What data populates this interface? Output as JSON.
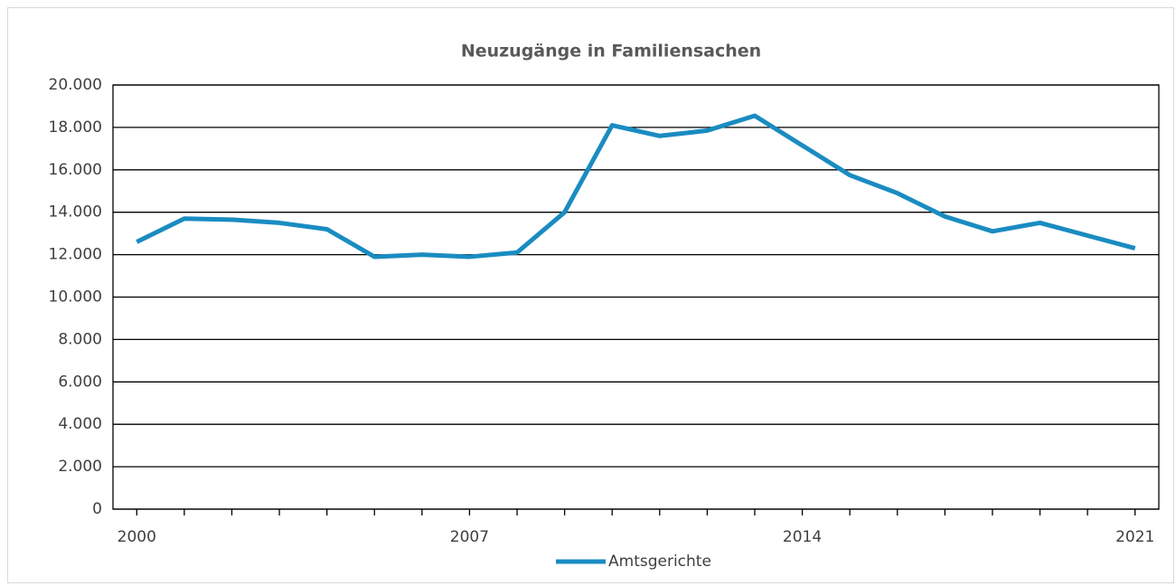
{
  "chart_data": {
    "type": "line",
    "title": "Neuzugänge in Familiensachen",
    "categories": [
      "2000",
      null,
      null,
      null,
      null,
      null,
      null,
      "2007",
      null,
      null,
      null,
      null,
      null,
      null,
      "2014",
      null,
      null,
      null,
      null,
      null,
      null,
      "2021"
    ],
    "series": [
      {
        "name": "Amtsgerichte",
        "color": "#1a8cc1",
        "values": [
          12600,
          13700,
          13650,
          13500,
          13200,
          11900,
          12000,
          11900,
          12100,
          14000,
          18100,
          17600,
          17850,
          18550,
          17150,
          15750,
          14900,
          13800,
          13100,
          13500,
          12900,
          12300
        ]
      }
    ],
    "ylim": [
      0,
      20000
    ],
    "yticks": [
      0,
      {
        "value": 2000,
        "label": "2.000"
      },
      {
        "value": 4000,
        "label": "4.000"
      },
      {
        "value": 6000,
        "label": "6.000"
      },
      {
        "value": 8000,
        "label": "8.000"
      },
      {
        "value": 10000,
        "label": "10.000"
      },
      {
        "value": 12000,
        "label": "12.000"
      },
      {
        "value": 14000,
        "label": "14.000"
      },
      {
        "value": 16000,
        "label": "16.000"
      },
      {
        "value": 18000,
        "label": "18.000"
      },
      {
        "value": 20000,
        "label": "20.000"
      }
    ],
    "grid": true,
    "legend": "bottom"
  }
}
